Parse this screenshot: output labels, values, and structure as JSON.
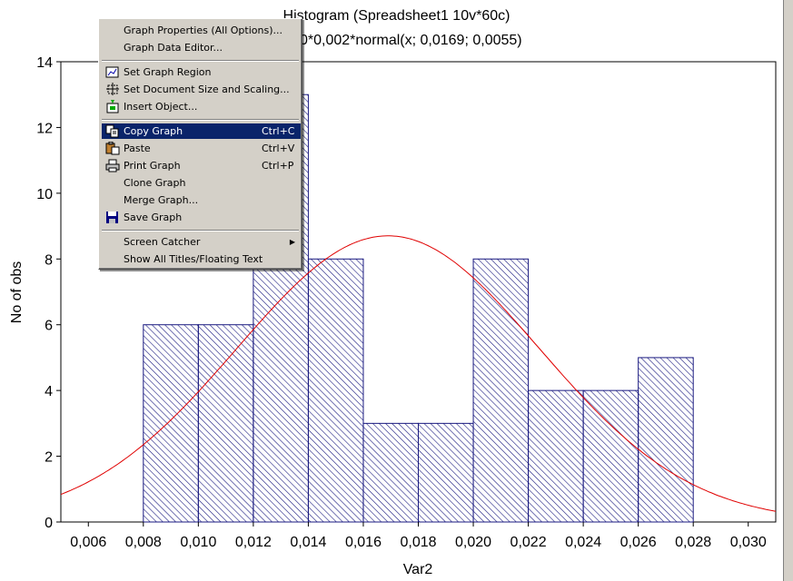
{
  "chart_data": {
    "type": "bar",
    "title": "Histogram (Spreadsheet1 10v*60c)",
    "subtitle_visible": "0*0,002*normal(x; 0,0169; 0,0055)",
    "xlabel": "Var2",
    "ylabel": "No of obs",
    "xlim": [
      0.005,
      0.031
    ],
    "ylim": [
      0,
      14
    ],
    "x_ticks": [
      "0,006",
      "0,008",
      "0,010",
      "0,012",
      "0,014",
      "0,016",
      "0,018",
      "0,020",
      "0,022",
      "0,024",
      "0,026",
      "0,028",
      "0,030"
    ],
    "y_ticks": [
      "0",
      "2",
      "4",
      "6",
      "8",
      "10",
      "12",
      "14"
    ],
    "bins": [
      {
        "from": 0.008,
        "to": 0.01,
        "count": 6
      },
      {
        "from": 0.01,
        "to": 0.012,
        "count": 6
      },
      {
        "from": 0.012,
        "to": 0.014,
        "count": 13
      },
      {
        "from": 0.014,
        "to": 0.016,
        "count": 8
      },
      {
        "from": 0.016,
        "to": 0.018,
        "count": 3
      },
      {
        "from": 0.018,
        "to": 0.02,
        "count": 3
      },
      {
        "from": 0.02,
        "to": 0.022,
        "count": 8
      },
      {
        "from": 0.022,
        "to": 0.024,
        "count": 4
      },
      {
        "from": 0.024,
        "to": 0.026,
        "count": 4
      },
      {
        "from": 0.026,
        "to": 0.028,
        "count": 5
      }
    ],
    "normal_curve": {
      "mean": 0.0169,
      "sd": 0.0055,
      "n": 60,
      "bin_width": 0.002,
      "color": "#e00000"
    },
    "bar_edge_color": "#1a1a80",
    "grid": false,
    "legend": "none"
  },
  "context_menu": {
    "items": [
      {
        "label": "Graph Properties (All Options)...",
        "shortcut": "",
        "icon": "",
        "type": "item"
      },
      {
        "label": "Graph Data Editor...",
        "shortcut": "",
        "icon": "",
        "type": "item"
      },
      {
        "type": "separator"
      },
      {
        "label": "Set Graph Region",
        "shortcut": "",
        "icon": "graph-region-icon",
        "type": "item"
      },
      {
        "label": "Set Document Size and Scaling...",
        "shortcut": "",
        "icon": "document-size-icon",
        "type": "item"
      },
      {
        "label": "Insert Object...",
        "shortcut": "",
        "icon": "insert-object-icon",
        "type": "item"
      },
      {
        "type": "separator"
      },
      {
        "label": "Copy Graph",
        "shortcut": "Ctrl+C",
        "icon": "copy-icon",
        "type": "item",
        "selected": true
      },
      {
        "label": "Paste",
        "shortcut": "Ctrl+V",
        "icon": "paste-icon",
        "type": "item"
      },
      {
        "label": "Print Graph",
        "shortcut": "Ctrl+P",
        "icon": "printer-icon",
        "type": "item"
      },
      {
        "label": "Clone Graph",
        "shortcut": "",
        "icon": "",
        "type": "item"
      },
      {
        "label": "Merge Graph...",
        "shortcut": "",
        "icon": "",
        "type": "item"
      },
      {
        "label": "Save Graph",
        "shortcut": "",
        "icon": "floppy-disk-icon",
        "type": "item"
      },
      {
        "type": "separator"
      },
      {
        "label": "Screen Catcher",
        "shortcut": "",
        "icon": "",
        "type": "item",
        "submenu": true
      },
      {
        "label": "Show All Titles/Floating Text",
        "shortcut": "",
        "icon": "",
        "type": "item"
      }
    ],
    "selected_color": "#0a246a",
    "background": "#d4d0c8"
  }
}
